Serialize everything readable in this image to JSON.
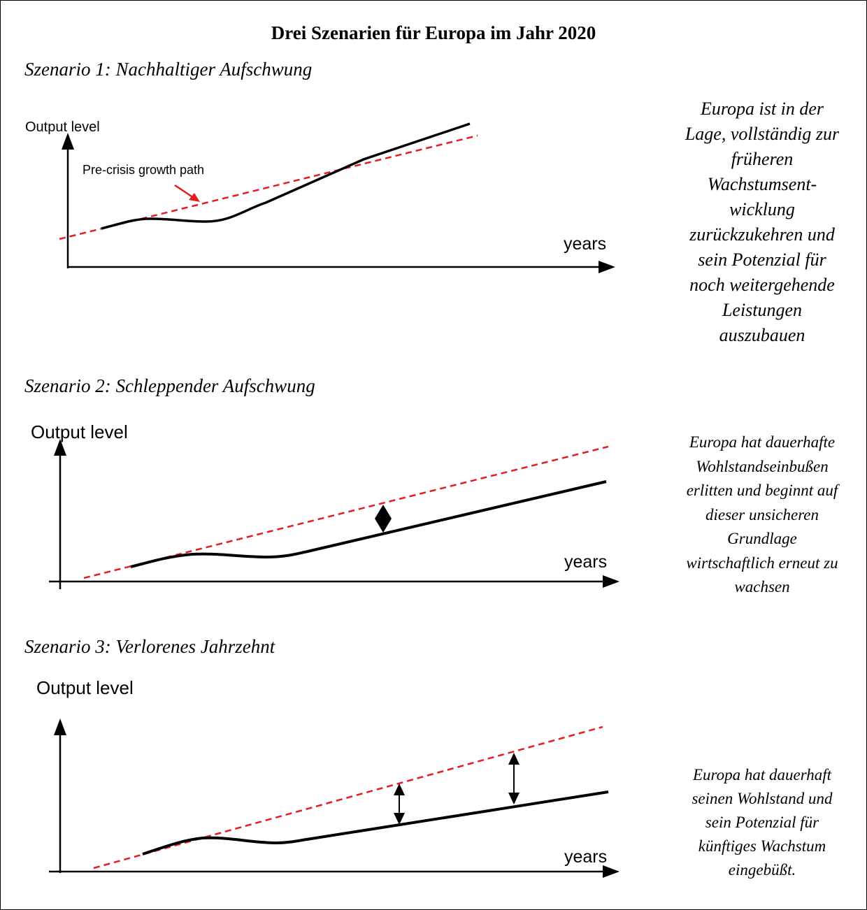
{
  "title": "Drei Szenarien für Europa im Jahr 2020",
  "colors": {
    "actual_path": "#000000",
    "pre_crisis_path": "#e31e1e",
    "border": "#000000"
  },
  "scenarios": [
    {
      "heading": "Szenario 1: Nachhaltiger Aufschwung",
      "ylabel": "Output level",
      "xlabel": "years",
      "annotation": "Pre-crisis growth path",
      "description_lines": [
        "Europa ist in der",
        "Lage, vollständig zur",
        "früheren",
        "Wachstumsent-",
        "wicklung",
        "zurückzukehren und",
        "sein Potenzial für",
        "noch weitergehende",
        "Leistungen",
        "auszubauen"
      ]
    },
    {
      "heading": "Szenario 2: Schleppender Aufschwung",
      "ylabel": "Output level",
      "xlabel": "years",
      "gap_markers": 1,
      "description_lines": [
        "Europa hat dauerhafte",
        "Wohlstandseinbußen",
        "erlitten und beginnt auf",
        "dieser unsicheren",
        "Grundlage",
        "wirtschaftlich erneut zu",
        "wachsen"
      ]
    },
    {
      "heading": "Szenario 3: Verlorenes Jahrzehnt",
      "ylabel": "Output level",
      "xlabel": "years",
      "gap_markers": 2,
      "description_lines": [
        "Europa hat dauerhaft",
        "seinen Wohlstand und",
        "sein Potenzial für",
        "künftiges Wachstum",
        "eingebüßt."
      ]
    }
  ]
}
